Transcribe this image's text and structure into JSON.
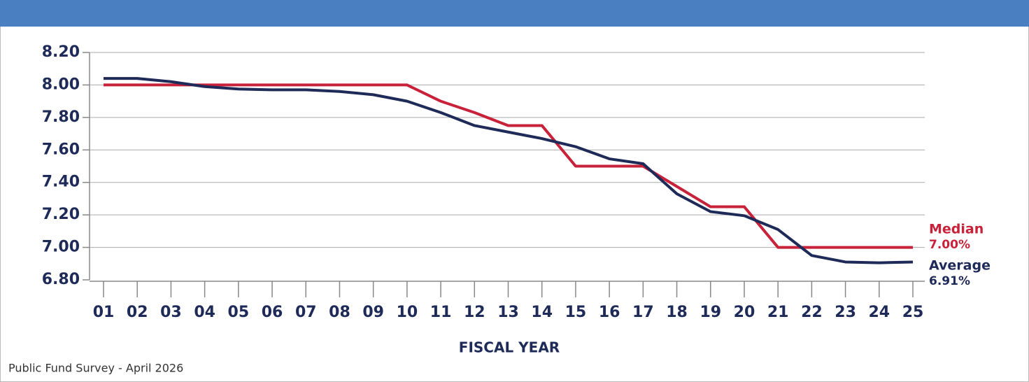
{
  "chart_data": {
    "type": "line",
    "x_label": "FISCAL YEAR",
    "source": "Public Fund Survey - April 2026",
    "categories": [
      "01",
      "02",
      "03",
      "04",
      "05",
      "06",
      "07",
      "08",
      "09",
      "10",
      "11",
      "12",
      "13",
      "14",
      "15",
      "16",
      "17",
      "18",
      "19",
      "20",
      "21",
      "22",
      "23",
      "24",
      "25"
    ],
    "series": [
      {
        "name": "Median",
        "color": "#c8213a",
        "values": [
          8.0,
          8.0,
          8.0,
          8.0,
          8.0,
          8.0,
          8.0,
          8.0,
          8.0,
          8.0,
          7.9,
          7.83,
          7.75,
          7.75,
          7.5,
          7.5,
          7.5,
          7.375,
          7.25,
          7.25,
          7.0,
          7.0,
          7.0,
          7.0,
          7.0
        ],
        "value_labels": [
          null,
          null,
          null,
          null,
          null,
          null,
          null,
          null,
          null,
          null,
          null,
          null,
          null,
          null,
          null,
          null,
          null,
          null,
          null,
          null,
          null,
          null,
          null,
          null,
          "7.00%"
        ]
      },
      {
        "name": "Average",
        "color": "#1e2a57",
        "values": [
          8.04,
          8.04,
          8.02,
          7.99,
          7.975,
          7.97,
          7.97,
          7.96,
          7.94,
          7.9,
          7.83,
          7.75,
          7.71,
          7.67,
          7.62,
          7.545,
          7.515,
          7.33,
          7.22,
          7.195,
          7.11,
          6.95,
          6.91,
          6.905,
          6.91
        ],
        "value_labels": [
          null,
          null,
          null,
          null,
          null,
          null,
          null,
          null,
          null,
          null,
          null,
          null,
          null,
          null,
          null,
          null,
          null,
          null,
          null,
          null,
          null,
          null,
          null,
          null,
          "6.91%"
        ]
      }
    ],
    "ylim": [
      6.8,
      8.2
    ],
    "yticks": [
      {
        "value": 6.8,
        "label": "6.80"
      },
      {
        "value": 7.0,
        "label": "7.00"
      },
      {
        "value": 7.2,
        "label": "7.20"
      },
      {
        "value": 7.4,
        "label": "7.40"
      },
      {
        "value": 7.6,
        "label": "7.60"
      },
      {
        "value": 7.8,
        "label": "7.80"
      },
      {
        "value": 8.0,
        "label": "8.00"
      },
      {
        "value": 8.2,
        "label": "8.20"
      }
    ],
    "grid": true
  }
}
